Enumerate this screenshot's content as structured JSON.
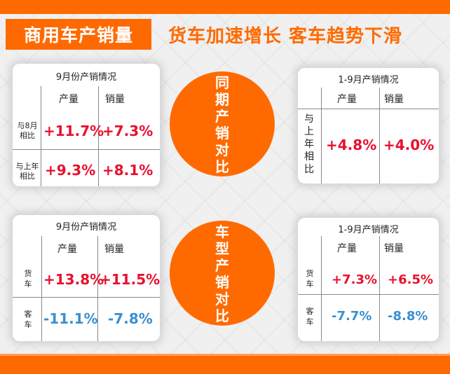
{
  "header": {
    "title": "商用车产销量",
    "headline": "货车加速增长 客车趋势下滑"
  },
  "colors": {
    "accent": "#ff6a00",
    "positive": "#e8102e",
    "negative": "#3a8fd0"
  },
  "circles": {
    "top": "同期产销对比",
    "bottom": "车型产销对比"
  },
  "cards": {
    "top_left": {
      "title": "9月份产销情况",
      "col1": "产量",
      "col2": "销量",
      "rows": [
        {
          "label_line1": "与8月",
          "label_line2": "相比",
          "v1": "+11.7%",
          "v2": "+7.3%"
        },
        {
          "label_line1": "与上年",
          "label_line2": "相比",
          "v1": "+9.3%",
          "v2": "+8.1%"
        }
      ]
    },
    "top_right": {
      "title": "1-9月产销情况",
      "col1": "产量",
      "col2": "销量",
      "row_label": "与上年相比",
      "v1": "+4.8%",
      "v2": "+4.0%"
    },
    "bottom_left": {
      "title": "9月份产销情况",
      "col1": "产量",
      "col2": "销量",
      "rows": [
        {
          "label": "货车",
          "v1": "+13.8%",
          "v2": "+11.5%"
        },
        {
          "label": "客车",
          "v1": "-11.1%",
          "v2": "-7.8%"
        }
      ]
    },
    "bottom_right": {
      "title": "1-9月产销情况",
      "col1": "产量",
      "col2": "销量",
      "rows": [
        {
          "label": "货车",
          "v1": "+7.3%",
          "v2": "+6.5%"
        },
        {
          "label": "客车",
          "v1": "-7.7%",
          "v2": "-8.8%"
        }
      ]
    }
  }
}
